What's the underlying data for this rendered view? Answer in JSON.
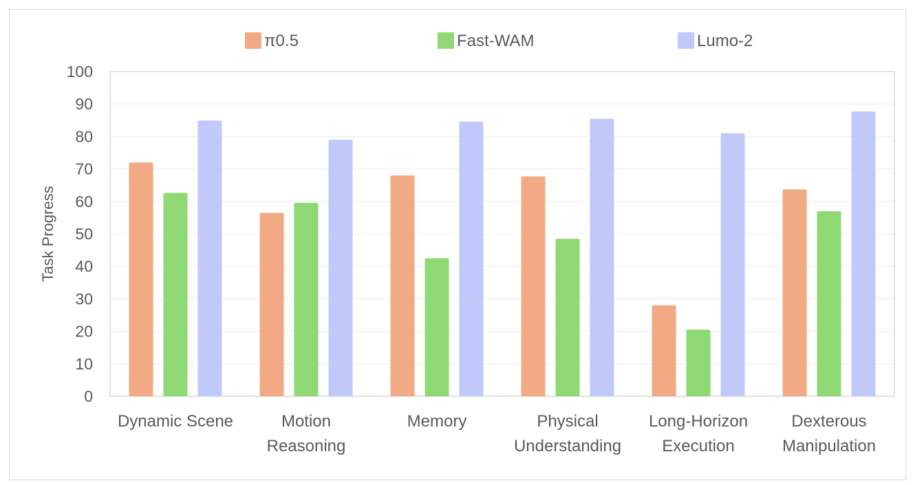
{
  "chart_data": {
    "type": "bar",
    "title": "",
    "xlabel": "",
    "ylabel": "Task Progress",
    "ylim": [
      0,
      100
    ],
    "yticks": [
      0,
      10,
      20,
      30,
      40,
      50,
      60,
      70,
      80,
      90,
      100
    ],
    "grid": true,
    "legend_position": "top",
    "categories": [
      [
        "Dynamic Scene"
      ],
      [
        "Motion",
        "Reasoning"
      ],
      [
        "Memory"
      ],
      [
        "Physical",
        "Understanding"
      ],
      [
        "Long-Horizon",
        "Execution"
      ],
      [
        "Dexterous",
        "Manipulation"
      ]
    ],
    "series": [
      {
        "name": "π0.5",
        "color": "#f2aa84",
        "values": [
          72,
          56.5,
          68,
          67.7,
          28,
          63.7
        ]
      },
      {
        "name": "Fast-WAM",
        "color": "#8ed973",
        "values": [
          62.6,
          59.6,
          42.5,
          48.5,
          20.5,
          57
        ]
      },
      {
        "name": "Lumo-2",
        "color": "#c0c9fa",
        "values": [
          84.9,
          79,
          84.6,
          85.5,
          81,
          87.7
        ]
      }
    ]
  }
}
